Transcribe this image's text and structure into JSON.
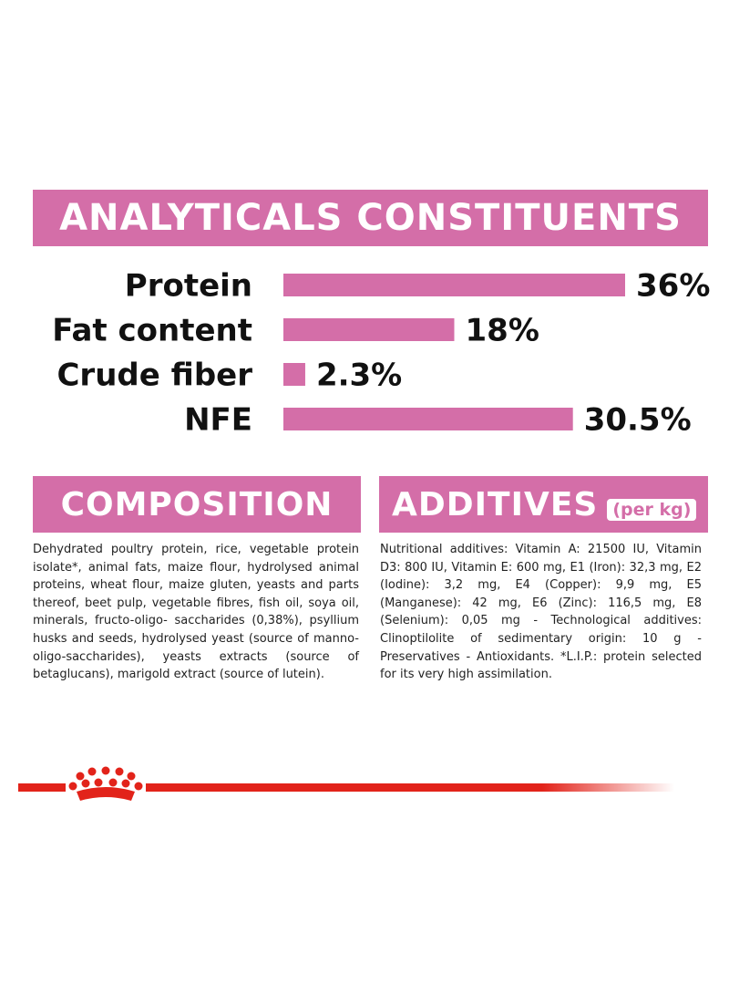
{
  "colors": {
    "accent": "#d46ea8",
    "brand_red": "#e2231a",
    "text": "#111111"
  },
  "analytics": {
    "title": "ANALYTICALS CONSTITUENTS"
  },
  "chart_data": {
    "type": "bar",
    "orientation": "horizontal",
    "title": "ANALYTICALS CONSTITUENTS",
    "categories": [
      "Protein",
      "Fat content",
      "Crude fiber",
      "NFE"
    ],
    "values": [
      36,
      18,
      2.3,
      30.5
    ],
    "value_labels": [
      "36%",
      "18%",
      "2.3%",
      "30.5%"
    ],
    "unit": "%",
    "xlim": [
      0,
      36
    ],
    "grid": false,
    "legend": "none",
    "bar_color": "#d46ea8"
  },
  "composition": {
    "title": "COMPOSITION",
    "text": "Dehydrated poultry protein, rice, vegetable protein isolate*, animal fats, maize flour, hydrolysed animal proteins, wheat flour, maize gluten, yeasts and parts thereof, beet pulp, vegetable fibres, fish oil, soya oil, minerals, fructo-oligo- saccharides (0,38%), psyllium husks and seeds, hydrolysed yeast (source of manno-oligo-saccharides), yeasts extracts (source of betaglucans), marigold extract (source of lutein)."
  },
  "additives": {
    "title": "ADDITIVES",
    "subtitle": "(per kg)",
    "text": "Nutritional additives: Vitamin A: 21500 IU, Vitamin D3: 800 IU, Vitamin E: 600 mg, E1 (Iron): 32,3 mg, E2 (Iodine): 3,2 mg, E4 (Copper): 9,9 mg, E5 (Manganese): 42 mg, E6 (Zinc): 116,5 mg, E8 (Selenium): 0,05 mg - Technological additives: Clinoptilolite of sedimentary origin: 10 g - Preservatives - Antioxidants. *L.I.P.: protein selected for its very high assimilation."
  },
  "footer": {
    "logo_icon": "crown-icon"
  }
}
